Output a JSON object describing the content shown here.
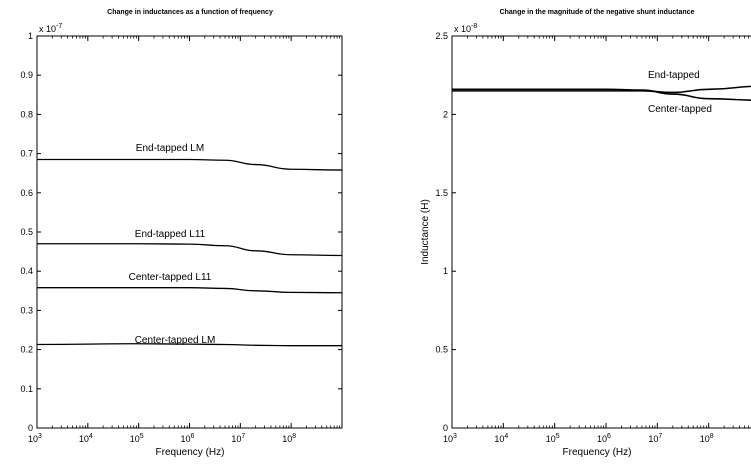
{
  "chart_data": [
    {
      "type": "line",
      "title": "Change in inductances as a function of frequency",
      "xlabel": "Frequency (Hz)",
      "ylabel": "",
      "xscale": "log",
      "xlim": [
        1000,
        1000000000
      ],
      "ylim": [
        0,
        1
      ],
      "y_multiplier": "x 10^-7",
      "x_ticks": [
        1000,
        10000,
        100000,
        1000000,
        10000000,
        100000000
      ],
      "x_tick_labels": [
        {
          "base": "10",
          "exp": "3"
        },
        {
          "base": "10",
          "exp": "4"
        },
        {
          "base": "10",
          "exp": "5"
        },
        {
          "base": "10",
          "exp": "6"
        },
        {
          "base": "10",
          "exp": "7"
        },
        {
          "base": "10",
          "exp": "8"
        }
      ],
      "y_ticks": [
        0,
        0.1,
        0.2,
        0.3,
        0.4,
        0.5,
        0.6,
        0.7,
        0.8,
        0.9,
        1
      ],
      "y_tick_labels": [
        "0",
        "0.1",
        "0.2",
        "0.3",
        "0.4",
        "0.5",
        "0.6",
        "0.7",
        "0.8",
        "0.9",
        "1"
      ],
      "grid": false,
      "series": [
        {
          "name": "End-tapped LM",
          "x": [
            1000,
            100000,
            1000000,
            5000000,
            20000000,
            100000000,
            1000000000
          ],
          "y": [
            0.685,
            0.685,
            0.685,
            0.683,
            0.672,
            0.66,
            0.658
          ]
        },
        {
          "name": "End-tapped L11",
          "x": [
            1000,
            100000,
            1000000,
            5000000,
            20000000,
            100000000,
            1000000000
          ],
          "y": [
            0.47,
            0.47,
            0.469,
            0.465,
            0.452,
            0.442,
            0.44
          ]
        },
        {
          "name": "Center-tapped L11",
          "x": [
            1000,
            100000,
            1000000,
            5000000,
            20000000,
            100000000,
            1000000000
          ],
          "y": [
            0.358,
            0.358,
            0.358,
            0.356,
            0.35,
            0.346,
            0.345
          ]
        },
        {
          "name": "Center-tapped LM",
          "x": [
            1000,
            100000,
            1000000,
            5000000,
            20000000,
            100000000,
            1000000000
          ],
          "y": [
            0.213,
            0.215,
            0.214,
            0.213,
            0.211,
            0.21,
            0.21
          ]
        }
      ]
    },
    {
      "type": "line",
      "title": "Change in the magnitude of the negative shunt inductance",
      "xlabel": "Frequency (Hz)",
      "ylabel": "Inductance (H)",
      "xscale": "log",
      "xlim": [
        1000,
        1000000000
      ],
      "ylim": [
        0,
        2.5
      ],
      "y_multiplier": "x 10^-8",
      "x_ticks": [
        1000,
        10000,
        100000,
        1000000,
        10000000,
        100000000
      ],
      "x_tick_labels": [
        {
          "base": "10",
          "exp": "3"
        },
        {
          "base": "10",
          "exp": "4"
        },
        {
          "base": "10",
          "exp": "5"
        },
        {
          "base": "10",
          "exp": "6"
        },
        {
          "base": "10",
          "exp": "7"
        },
        {
          "base": "10",
          "exp": "8"
        }
      ],
      "y_ticks": [
        0,
        0.5,
        1,
        1.5,
        2,
        2.5
      ],
      "y_tick_labels": [
        "0",
        "0.5",
        "1",
        "1.5",
        "2",
        "2.5"
      ],
      "grid": false,
      "series": [
        {
          "name": "End-tapped",
          "x": [
            1000,
            100000,
            1000000,
            5000000,
            20000000,
            100000000,
            1000000000
          ],
          "y": [
            2.15,
            2.15,
            2.15,
            2.15,
            2.14,
            2.16,
            2.18
          ]
        },
        {
          "name": "Center-tapped",
          "x": [
            1000,
            100000,
            1000000,
            5000000,
            20000000,
            100000000,
            1000000000
          ],
          "y": [
            2.16,
            2.16,
            2.16,
            2.155,
            2.13,
            2.1,
            2.09
          ]
        }
      ]
    }
  ]
}
